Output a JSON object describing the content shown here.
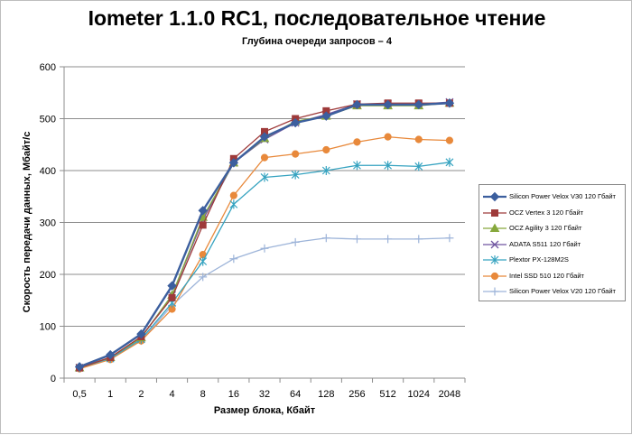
{
  "chart_data": {
    "type": "line",
    "title": "Iometer 1.1.0 RC1, последовательное чтение",
    "subtitle": "Глубина очереди запросов – 4",
    "xlabel": "Размер блока, Кбайт",
    "ylabel": "Скорость передачи данных, Мбайт/с",
    "categories": [
      "0,5",
      "1",
      "2",
      "4",
      "8",
      "16",
      "32",
      "64",
      "128",
      "256",
      "512",
      "1024",
      "2048"
    ],
    "ylim": [
      0,
      600
    ],
    "yticks": [
      "0",
      "100",
      "200",
      "300",
      "400",
      "500",
      "600"
    ],
    "grid": "horizontal",
    "legend_position": "right",
    "series": [
      {
        "name": "Silicon Power Velox V30 120 Гбайт",
        "color": "#3c5f9e",
        "marker": "diamond",
        "values": [
          22,
          45,
          85,
          178,
          323,
          415,
          465,
          492,
          505,
          527,
          527,
          527,
          530
        ]
      },
      {
        "name": "OCZ Vertex 3 120 Гбайт",
        "color": "#9e3a3a",
        "marker": "square",
        "values": [
          20,
          40,
          80,
          155,
          295,
          423,
          475,
          500,
          515,
          528,
          530,
          530,
          530
        ]
      },
      {
        "name": "OCZ Agility 3 120 Гбайт",
        "color": "#86a83c",
        "marker": "triangle",
        "values": [
          20,
          40,
          78,
          160,
          310,
          415,
          462,
          495,
          505,
          525,
          525,
          525,
          530
        ]
      },
      {
        "name": "ADATA S511 120 Гбайт",
        "color": "#6f55a0",
        "marker": "x",
        "values": [
          20,
          40,
          78,
          160,
          305,
          415,
          460,
          492,
          508,
          528,
          528,
          528,
          532
        ]
      },
      {
        "name": "Plextor PX-128M2S",
        "color": "#36a3c0",
        "marker": "star",
        "values": [
          20,
          38,
          75,
          145,
          225,
          335,
          387,
          392,
          400,
          410,
          410,
          408,
          416
        ]
      },
      {
        "name": "Intel SSD 510 120 Гбайт",
        "color": "#e8893b",
        "marker": "circle",
        "values": [
          18,
          36,
          72,
          133,
          238,
          352,
          425,
          432,
          440,
          455,
          465,
          460,
          458
        ]
      },
      {
        "name": "Silicon Power Velox V20 120 Гбайт",
        "color": "#9db4d9",
        "marker": "plus",
        "values": [
          20,
          38,
          72,
          140,
          195,
          230,
          250,
          262,
          270,
          268,
          268,
          268,
          270
        ]
      }
    ]
  }
}
